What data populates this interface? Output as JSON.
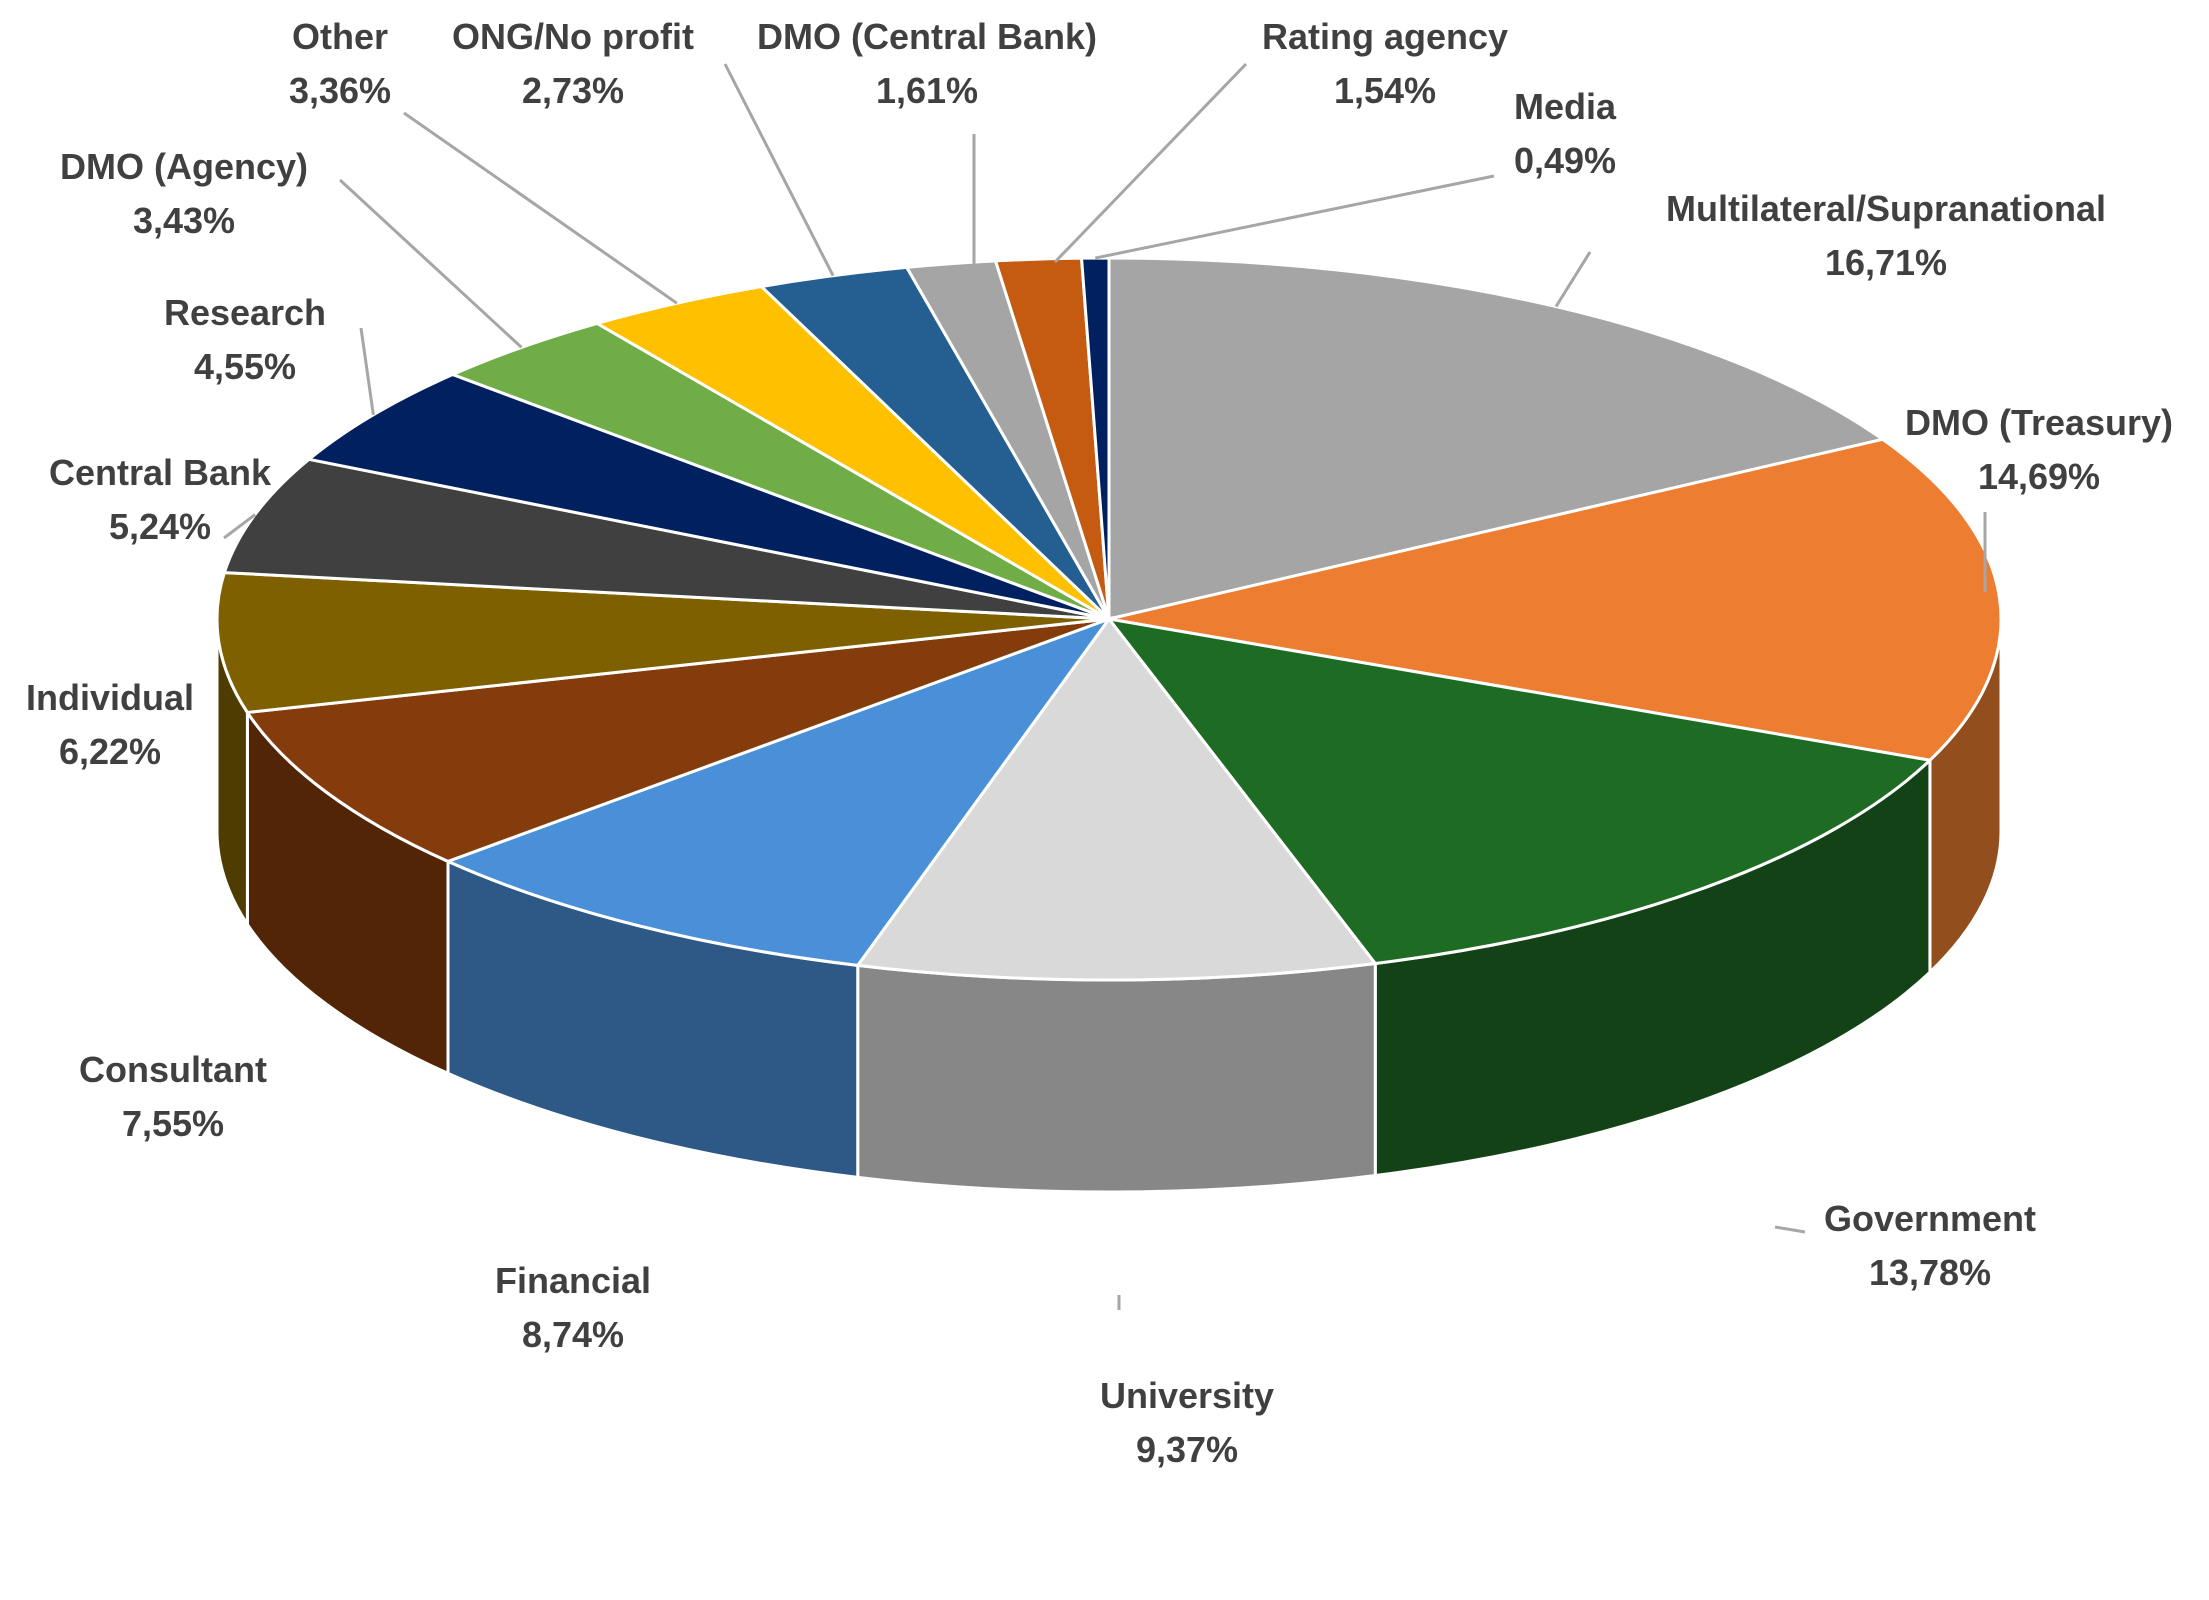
{
  "chart_data": {
    "type": "pie",
    "style": "3d",
    "start": "12 o'clock, clockwise",
    "slices": [
      {
        "label": "Multilateral/Supranational",
        "value": 16.71,
        "text": "16,71%",
        "color": "#A5A5A5"
      },
      {
        "label": "DMO (Treasury)",
        "value": 14.69,
        "text": "14,69%",
        "color": "#ED7D31"
      },
      {
        "label": "Government",
        "value": 13.78,
        "text": "13,78%",
        "color": "#1E6B23"
      },
      {
        "label": "University",
        "value": 9.37,
        "text": "9,37%",
        "color": "#D9D9D9"
      },
      {
        "label": "Financial",
        "value": 8.74,
        "text": "8,74%",
        "color": "#4A90D9"
      },
      {
        "label": "Consultant",
        "value": 7.55,
        "text": "7,55%",
        "color": "#843C0C"
      },
      {
        "label": "Individual",
        "value": 6.22,
        "text": "6,22%",
        "color": "#7F6000"
      },
      {
        "label": "Central Bank",
        "value": 5.24,
        "text": "5,24%",
        "color": "#404040"
      },
      {
        "label": "Research",
        "value": 4.55,
        "text": "4,55%",
        "color": "#002060"
      },
      {
        "label": "DMO (Agency)",
        "value": 3.43,
        "text": "3,43%",
        "color": "#70AD47"
      },
      {
        "label": "Other",
        "value": 3.36,
        "text": "3,36%",
        "color": "#FFC000"
      },
      {
        "label": "ONG/No profit",
        "value": 2.73,
        "text": "2,73%",
        "color": "#255E91"
      },
      {
        "label": "DMO (Central Bank)",
        "value": 1.61,
        "text": "1,61%",
        "color": "#A5A5A5"
      },
      {
        "label": "Rating agency",
        "value": 1.54,
        "text": "1,54%",
        "color": "#C55A11"
      },
      {
        "label": "Media",
        "value": 0.49,
        "text": "0,49%",
        "color": "#002060"
      }
    ]
  }
}
